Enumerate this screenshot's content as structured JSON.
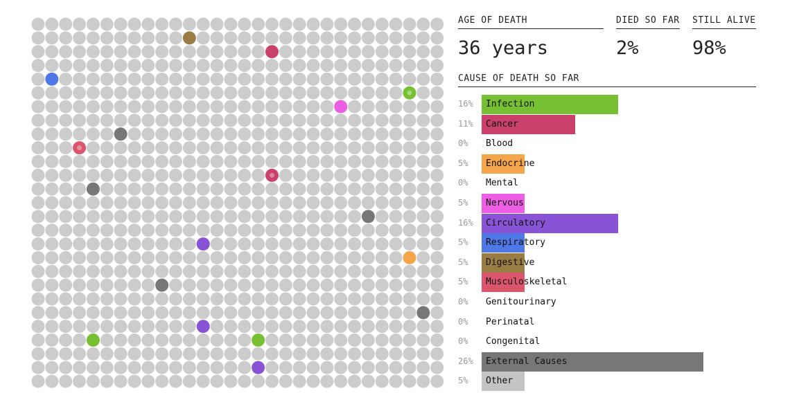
{
  "stats": {
    "age": {
      "label": "AGE OF DEATH",
      "value": "36 years"
    },
    "died": {
      "label": "DIED SO FAR",
      "value": "2%"
    },
    "alive": {
      "label": "STILL ALIVE",
      "value": "98%"
    }
  },
  "cause_header": "CAUSE OF DEATH SO FAR",
  "colors": {
    "empty": "#cccccc",
    "Infection": "#77bf33",
    "Cancer": "#c9406b",
    "Blood": "#c23b3b",
    "Endocrine": "#f5a64c",
    "Mental": "#c23b3b",
    "Nervous": "#ec5ee3",
    "Circulatory": "#8953d6",
    "Respiratory": "#4e78e6",
    "Digestive": "#9a7d45",
    "Musculoskeletal": "#db556c",
    "Genitourinary": "#999999",
    "Perinatal": "#999999",
    "Congenital": "#999999",
    "External Causes": "#777777",
    "Other": "#c4c4c4"
  },
  "chart_data": [
    {
      "type": "bar",
      "title": "CAUSE OF DEATH SO FAR",
      "categories": [
        "Infection",
        "Cancer",
        "Blood",
        "Endocrine",
        "Mental",
        "Nervous",
        "Circulatory",
        "Respiratory",
        "Digestive",
        "Musculoskeletal",
        "Genitourinary",
        "Perinatal",
        "Congenital",
        "External Causes",
        "Other"
      ],
      "values": [
        16,
        11,
        0,
        5,
        0,
        5,
        16,
        5,
        5,
        5,
        0,
        0,
        0,
        26,
        5
      ],
      "value_labels": [
        "16%",
        "11%",
        "0%",
        "5%",
        "0%",
        "5%",
        "16%",
        "5%",
        "5%",
        "5%",
        "0%",
        "0%",
        "0%",
        "26%",
        "5%"
      ],
      "unit": "%",
      "orientation": "horizontal"
    },
    {
      "type": "scatter",
      "description": "dot grid of 30 columns x 27 rows; colored dots mark deaths by cause",
      "cols": 30,
      "rows": 27,
      "dots": [
        {
          "col": 11,
          "row": 1,
          "cause": "Digestive"
        },
        {
          "col": 17,
          "row": 2,
          "cause": "Cancer"
        },
        {
          "col": 1,
          "row": 4,
          "cause": "Respiratory"
        },
        {
          "col": 27,
          "row": 5,
          "cause": "Infection",
          "ring": true
        },
        {
          "col": 22,
          "row": 6,
          "cause": "Nervous"
        },
        {
          "col": 6,
          "row": 8,
          "cause": "External Causes"
        },
        {
          "col": 3,
          "row": 9,
          "cause": "Musculoskeletal",
          "ring": true
        },
        {
          "col": 17,
          "row": 11,
          "cause": "Cancer",
          "ring": true
        },
        {
          "col": 4,
          "row": 12,
          "cause": "External Causes"
        },
        {
          "col": 24,
          "row": 14,
          "cause": "External Causes"
        },
        {
          "col": 12,
          "row": 16,
          "cause": "Circulatory"
        },
        {
          "col": 27,
          "row": 17,
          "cause": "Endocrine"
        },
        {
          "col": 9,
          "row": 19,
          "cause": "External Causes"
        },
        {
          "col": 28,
          "row": 21,
          "cause": "External Causes"
        },
        {
          "col": 12,
          "row": 22,
          "cause": "Circulatory"
        },
        {
          "col": 4,
          "row": 23,
          "cause": "Infection"
        },
        {
          "col": 16,
          "row": 23,
          "cause": "Infection"
        },
        {
          "col": 16,
          "row": 25,
          "cause": "Circulatory"
        }
      ]
    }
  ]
}
